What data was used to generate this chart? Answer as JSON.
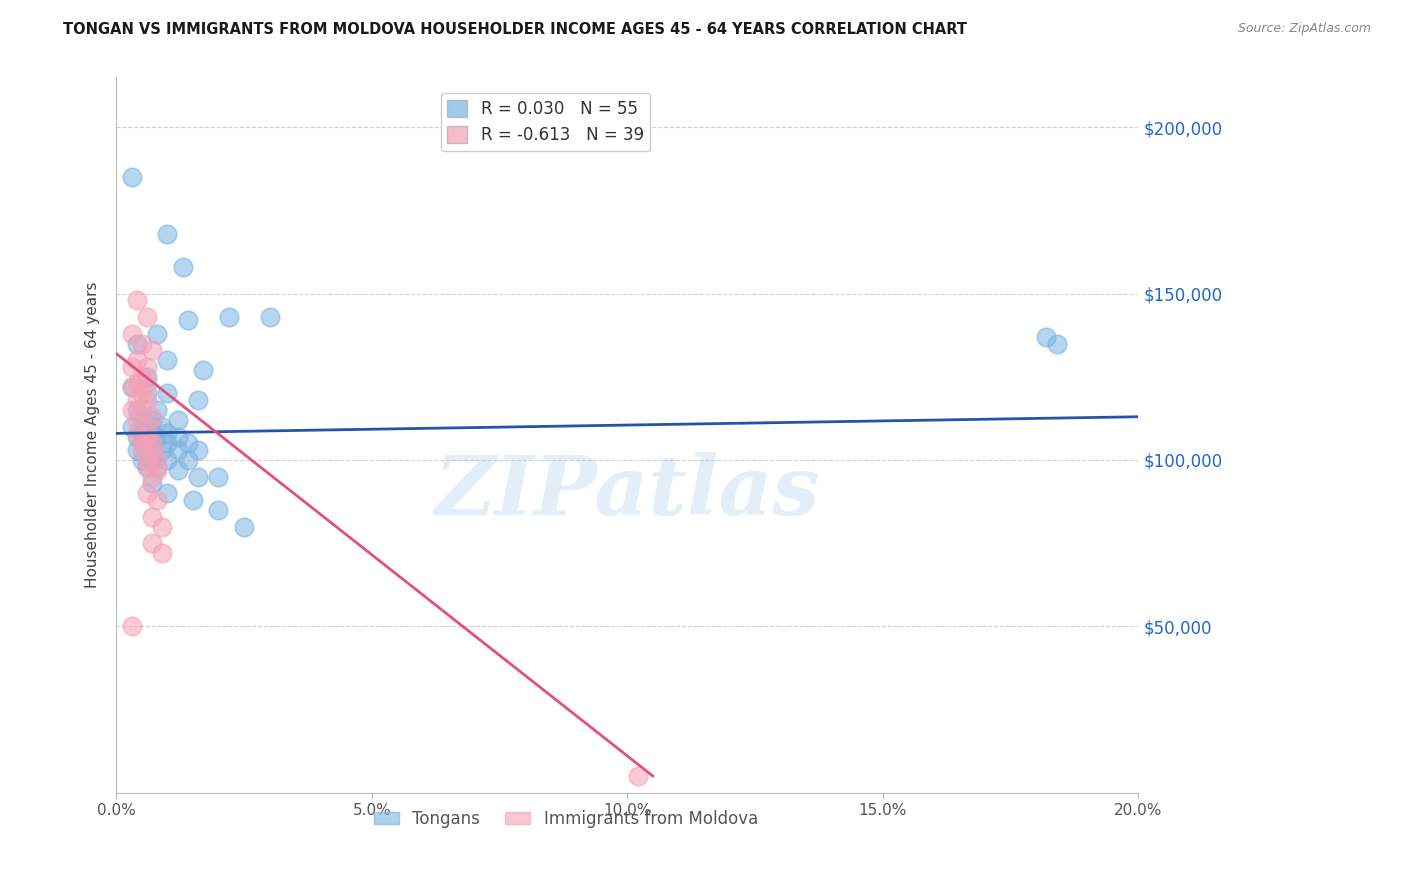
{
  "title": "TONGAN VS IMMIGRANTS FROM MOLDOVA HOUSEHOLDER INCOME AGES 45 - 64 YEARS CORRELATION CHART",
  "source": "Source: ZipAtlas.com",
  "ylabel": "Householder Income Ages 45 - 64 years",
  "xlabel_ticks": [
    "0.0%",
    "5.0%",
    "10.0%",
    "15.0%",
    "20.0%"
  ],
  "xlabel_vals": [
    0.0,
    0.05,
    0.1,
    0.15,
    0.2
  ],
  "ylabel_ticks": [
    "$50,000",
    "$100,000",
    "$150,000",
    "$200,000"
  ],
  "ylabel_vals": [
    50000,
    100000,
    150000,
    200000
  ],
  "xlim": [
    0.0,
    0.2
  ],
  "ylim": [
    0,
    215000
  ],
  "watermark": "ZIPatlas",
  "legend1_label": "R = 0.030   N = 55",
  "legend2_label": "R = -0.613   N = 39",
  "tongan_color": "#7ab3e0",
  "moldova_color": "#f5a0b5",
  "tongan_line_color": "#2255aa",
  "moldova_line_color": "#e05080",
  "tongan_line_x": [
    0.0,
    0.2
  ],
  "tongan_line_y": [
    108000,
    113000
  ],
  "moldova_line_x": [
    0.0,
    0.105
  ],
  "moldova_line_y": [
    132000,
    5000
  ],
  "tongan_points": [
    [
      0.003,
      185000
    ],
    [
      0.01,
      168000
    ],
    [
      0.013,
      158000
    ],
    [
      0.022,
      143000
    ],
    [
      0.03,
      143000
    ],
    [
      0.014,
      142000
    ],
    [
      0.008,
      138000
    ],
    [
      0.004,
      135000
    ],
    [
      0.01,
      130000
    ],
    [
      0.017,
      127000
    ],
    [
      0.006,
      125000
    ],
    [
      0.003,
      122000
    ],
    [
      0.006,
      120000
    ],
    [
      0.01,
      120000
    ],
    [
      0.016,
      118000
    ],
    [
      0.004,
      115000
    ],
    [
      0.008,
      115000
    ],
    [
      0.005,
      112000
    ],
    [
      0.007,
      112000
    ],
    [
      0.012,
      112000
    ],
    [
      0.006,
      110000
    ],
    [
      0.009,
      110000
    ],
    [
      0.003,
      110000
    ],
    [
      0.005,
      108000
    ],
    [
      0.007,
      108000
    ],
    [
      0.01,
      108000
    ],
    [
      0.004,
      107000
    ],
    [
      0.006,
      107000
    ],
    [
      0.008,
      107000
    ],
    [
      0.012,
      107000
    ],
    [
      0.005,
      105000
    ],
    [
      0.007,
      105000
    ],
    [
      0.01,
      105000
    ],
    [
      0.014,
      105000
    ],
    [
      0.004,
      103000
    ],
    [
      0.006,
      103000
    ],
    [
      0.009,
      103000
    ],
    [
      0.012,
      103000
    ],
    [
      0.016,
      103000
    ],
    [
      0.005,
      100000
    ],
    [
      0.007,
      100000
    ],
    [
      0.01,
      100000
    ],
    [
      0.014,
      100000
    ],
    [
      0.006,
      98000
    ],
    [
      0.008,
      98000
    ],
    [
      0.012,
      97000
    ],
    [
      0.016,
      95000
    ],
    [
      0.02,
      95000
    ],
    [
      0.007,
      93000
    ],
    [
      0.01,
      90000
    ],
    [
      0.015,
      88000
    ],
    [
      0.02,
      85000
    ],
    [
      0.025,
      80000
    ],
    [
      0.182,
      137000
    ],
    [
      0.184,
      135000
    ]
  ],
  "moldova_points": [
    [
      0.004,
      148000
    ],
    [
      0.006,
      143000
    ],
    [
      0.003,
      138000
    ],
    [
      0.005,
      135000
    ],
    [
      0.007,
      133000
    ],
    [
      0.004,
      130000
    ],
    [
      0.006,
      128000
    ],
    [
      0.003,
      128000
    ],
    [
      0.005,
      125000
    ],
    [
      0.004,
      123000
    ],
    [
      0.006,
      123000
    ],
    [
      0.003,
      122000
    ],
    [
      0.005,
      120000
    ],
    [
      0.004,
      118000
    ],
    [
      0.006,
      118000
    ],
    [
      0.003,
      115000
    ],
    [
      0.005,
      115000
    ],
    [
      0.007,
      113000
    ],
    [
      0.004,
      112000
    ],
    [
      0.006,
      110000
    ],
    [
      0.004,
      108000
    ],
    [
      0.006,
      107000
    ],
    [
      0.005,
      105000
    ],
    [
      0.007,
      105000
    ],
    [
      0.005,
      103000
    ],
    [
      0.007,
      103000
    ],
    [
      0.006,
      100000
    ],
    [
      0.008,
      100000
    ],
    [
      0.006,
      98000
    ],
    [
      0.008,
      97000
    ],
    [
      0.007,
      95000
    ],
    [
      0.006,
      90000
    ],
    [
      0.008,
      88000
    ],
    [
      0.007,
      83000
    ],
    [
      0.009,
      80000
    ],
    [
      0.007,
      75000
    ],
    [
      0.009,
      72000
    ],
    [
      0.003,
      50000
    ],
    [
      0.102,
      5000
    ]
  ]
}
